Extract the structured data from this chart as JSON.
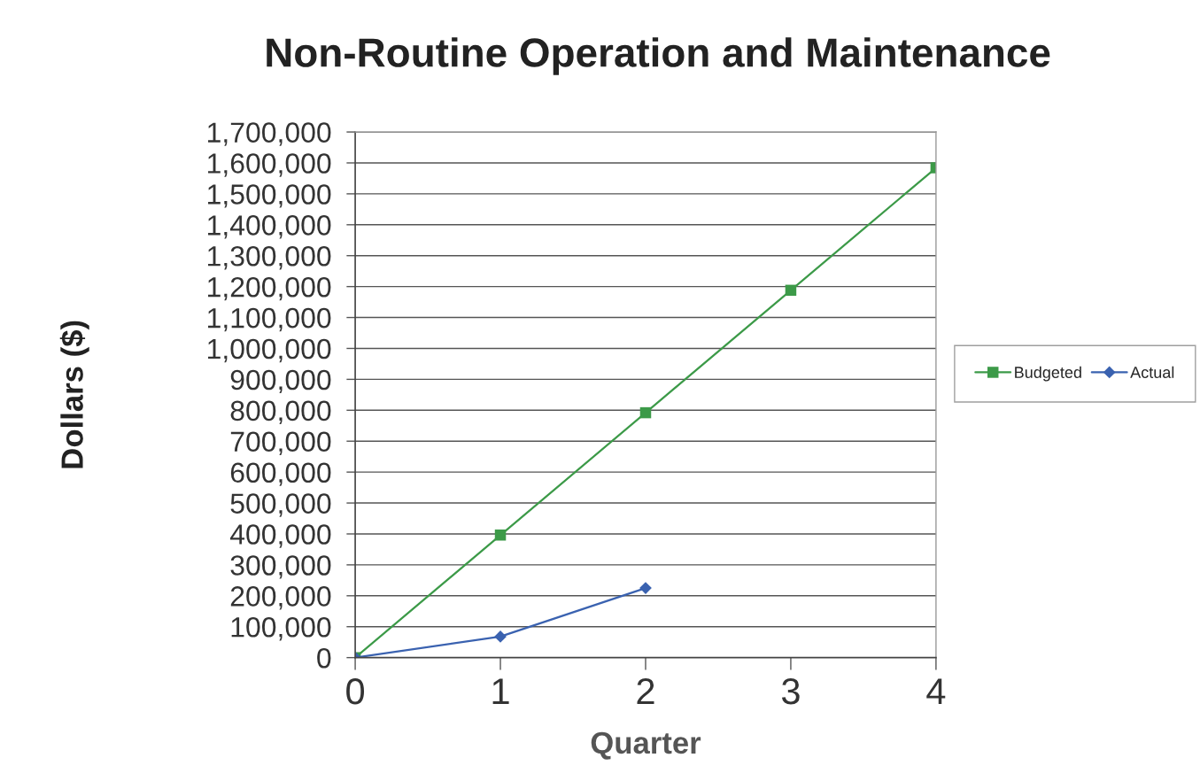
{
  "chart_data": {
    "type": "line",
    "title": "Non-Routine Operation and Maintenance",
    "xlabel": "Quarter",
    "ylabel": "Dollars ($)",
    "x": [
      0,
      1,
      2,
      3,
      4
    ],
    "series": [
      {
        "name": "Budgeted",
        "color": "#3c9a48",
        "marker": "square",
        "values": [
          0,
          396000,
          792000,
          1188000,
          1584000
        ]
      },
      {
        "name": "Actual",
        "color": "#3a62b0",
        "marker": "diamond",
        "values": [
          0,
          68000,
          225000,
          null,
          null
        ]
      }
    ],
    "xlim": [
      0,
      4
    ],
    "xticks": [
      0,
      1,
      2,
      3,
      4
    ],
    "ylim": [
      0,
      1700000
    ],
    "yticks": [
      0,
      {
        "value": 100000,
        "label": "100,000"
      },
      {
        "value": 200000,
        "label": "200,000"
      },
      {
        "value": 300000,
        "label": "300,000"
      },
      {
        "value": 400000,
        "label": "400,000"
      },
      {
        "value": 500000,
        "label": "500,000"
      },
      {
        "value": 600000,
        "label": "600,000"
      },
      {
        "value": 700000,
        "label": "700,000"
      },
      {
        "value": 800000,
        "label": "800,000"
      },
      {
        "value": 900000,
        "label": "900,000"
      },
      {
        "value": 1000000,
        "label": "1,000,000"
      },
      {
        "value": 1100000,
        "label": "1,100,000"
      },
      {
        "value": 1200000,
        "label": "1,200,000"
      },
      {
        "value": 1300000,
        "label": "1,300,000"
      },
      {
        "value": 1400000,
        "label": "1,400,000"
      },
      {
        "value": 1500000,
        "label": "1,500,000"
      },
      {
        "value": 1600000,
        "label": "1,600,000"
      },
      {
        "value": 1700000,
        "label": "1,700,000"
      }
    ],
    "grid": "y",
    "legend": "right",
    "line_style": "solid"
  }
}
